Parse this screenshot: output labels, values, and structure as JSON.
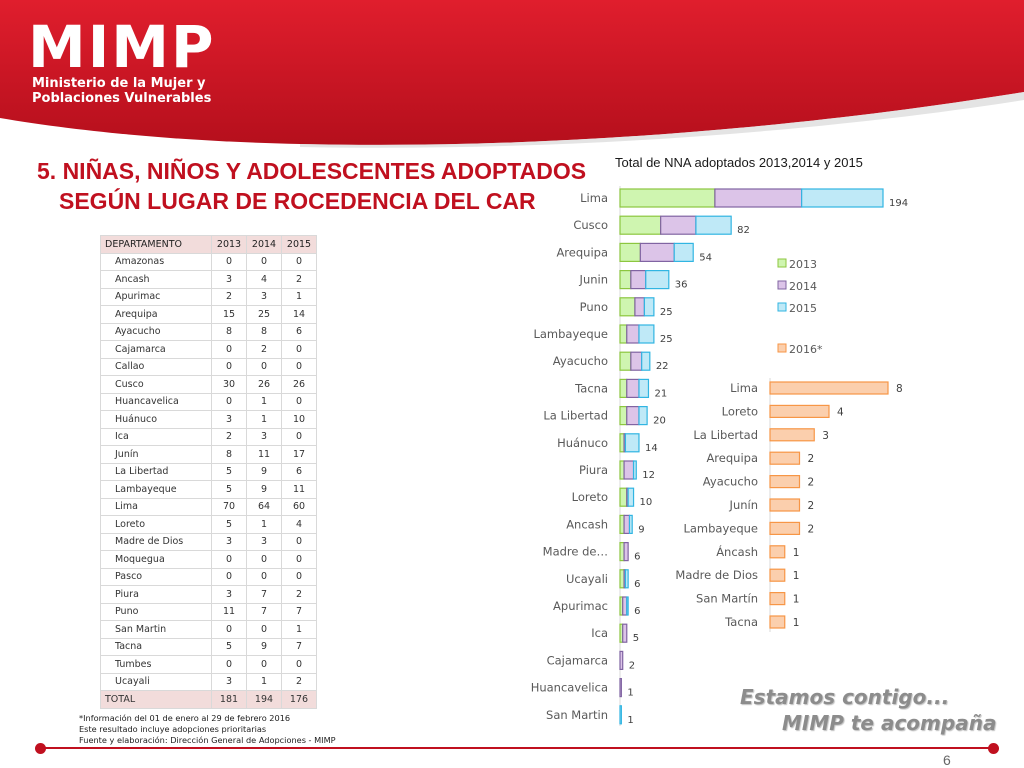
{
  "brand": {
    "logo": "MIMP",
    "sub1": "Ministerio de la Mujer y",
    "sub2": "Poblaciones Vulnerables"
  },
  "title": {
    "line1": "5. NIÑAS, NIÑOS Y ADOLESCENTES ADOPTADOS",
    "line2": "SEGÚN LUGAR DE ROCEDENCIA DEL CAR"
  },
  "table": {
    "headers": [
      "DEPARTAMENTO",
      "2013",
      "2014",
      "2015"
    ],
    "rows": [
      [
        "Amazonas",
        "0",
        "0",
        "0"
      ],
      [
        "Ancash",
        "3",
        "4",
        "2"
      ],
      [
        "Apurimac",
        "2",
        "3",
        "1"
      ],
      [
        "Arequipa",
        "15",
        "25",
        "14"
      ],
      [
        "Ayacucho",
        "8",
        "8",
        "6"
      ],
      [
        "Cajamarca",
        "0",
        "2",
        "0"
      ],
      [
        "Callao",
        "0",
        "0",
        "0"
      ],
      [
        "Cusco",
        "30",
        "26",
        "26"
      ],
      [
        "Huancavelica",
        "0",
        "1",
        "0"
      ],
      [
        "Huánuco",
        "3",
        "1",
        "10"
      ],
      [
        "Ica",
        "2",
        "3",
        "0"
      ],
      [
        "Junín",
        "8",
        "11",
        "17"
      ],
      [
        "La Libertad",
        "5",
        "9",
        "6"
      ],
      [
        "Lambayeque",
        "5",
        "9",
        "11"
      ],
      [
        "Lima",
        "70",
        "64",
        "60"
      ],
      [
        "Loreto",
        "5",
        "1",
        "4"
      ],
      [
        "Madre de Dios",
        "3",
        "3",
        "0"
      ],
      [
        "Moquegua",
        "0",
        "0",
        "0"
      ],
      [
        "Pasco",
        "0",
        "0",
        "0"
      ],
      [
        "Piura",
        "3",
        "7",
        "2"
      ],
      [
        "Puno",
        "11",
        "7",
        "7"
      ],
      [
        "San Martin",
        "0",
        "0",
        "1"
      ],
      [
        "Tacna",
        "5",
        "9",
        "7"
      ],
      [
        "Tumbes",
        "0",
        "0",
        "0"
      ],
      [
        "Ucayali",
        "3",
        "1",
        "2"
      ]
    ],
    "total": [
      "TOTAL",
      "181",
      "194",
      "176"
    ]
  },
  "notes": {
    "line1": "*Información del 01 de enero al 29 de febrero 2016",
    "line2": "Este resultado incluye adopciones prioritarias",
    "line3": "Fuente y elaboración: Dirección General de Adopciones - MIMP"
  },
  "colors": {
    "brand_red": "#c0101f",
    "s2013": "#cff5b0",
    "s2014": "#dcc4e8",
    "s2015": "#bfe9f7",
    "s2016": "#fbcfad"
  },
  "slogan": {
    "line1": "Estamos contigo...",
    "line2": "MIMP te acompaña"
  },
  "page_number": "6",
  "chart_data": [
    {
      "type": "bar",
      "orientation": "horizontal",
      "stacked": true,
      "title": "Total de NNA adoptados 2013,2014 y 2015",
      "categories": [
        "Lima",
        "Cusco",
        "Arequipa",
        "Junin",
        "Puno",
        "Lambayeque",
        "Ayacucho",
        "Tacna",
        "La Libertad",
        "Huánuco",
        "Piura",
        "Loreto",
        "Ancash",
        "Madre de…",
        "Ucayali",
        "Apurimac",
        "Ica",
        "Cajamarca",
        "Huancavelica",
        "San Martin"
      ],
      "series": [
        {
          "name": "2013",
          "values": [
            70,
            30,
            15,
            8,
            11,
            5,
            8,
            5,
            5,
            3,
            3,
            5,
            3,
            3,
            3,
            2,
            2,
            0,
            0,
            0
          ]
        },
        {
          "name": "2014",
          "values": [
            64,
            26,
            25,
            11,
            7,
            9,
            8,
            9,
            9,
            1,
            7,
            1,
            4,
            3,
            1,
            3,
            3,
            2,
            1,
            0
          ]
        },
        {
          "name": "2015",
          "values": [
            60,
            26,
            14,
            17,
            7,
            11,
            6,
            7,
            6,
            10,
            2,
            4,
            2,
            0,
            2,
            1,
            0,
            0,
            0,
            1
          ]
        }
      ],
      "totals": [
        "194",
        "82",
        "54",
        "36",
        "25",
        "25",
        "22",
        "21",
        "20",
        "14",
        "12",
        "10",
        "9",
        "6",
        "6",
        "6",
        "5",
        "2",
        "1",
        "1"
      ],
      "xlim": [
        0,
        194
      ],
      "legend": "right"
    },
    {
      "type": "bar",
      "orientation": "horizontal",
      "categories": [
        "Lima",
        "Loreto",
        "La Libertad",
        "Arequipa",
        "Ayacucho",
        "Junín",
        "Lambayeque",
        "Áncash",
        "Madre de Dios",
        "San Martín",
        "Tacna"
      ],
      "series": [
        {
          "name": "2016*",
          "values": [
            8,
            4,
            3,
            2,
            2,
            2,
            2,
            1,
            1,
            1,
            1
          ]
        }
      ],
      "labels": [
        "8",
        "4",
        "3",
        "2",
        "2",
        "2",
        "2",
        "1",
        "1",
        "1",
        "1"
      ],
      "xlim": [
        0,
        8
      ],
      "legend": "top"
    }
  ]
}
